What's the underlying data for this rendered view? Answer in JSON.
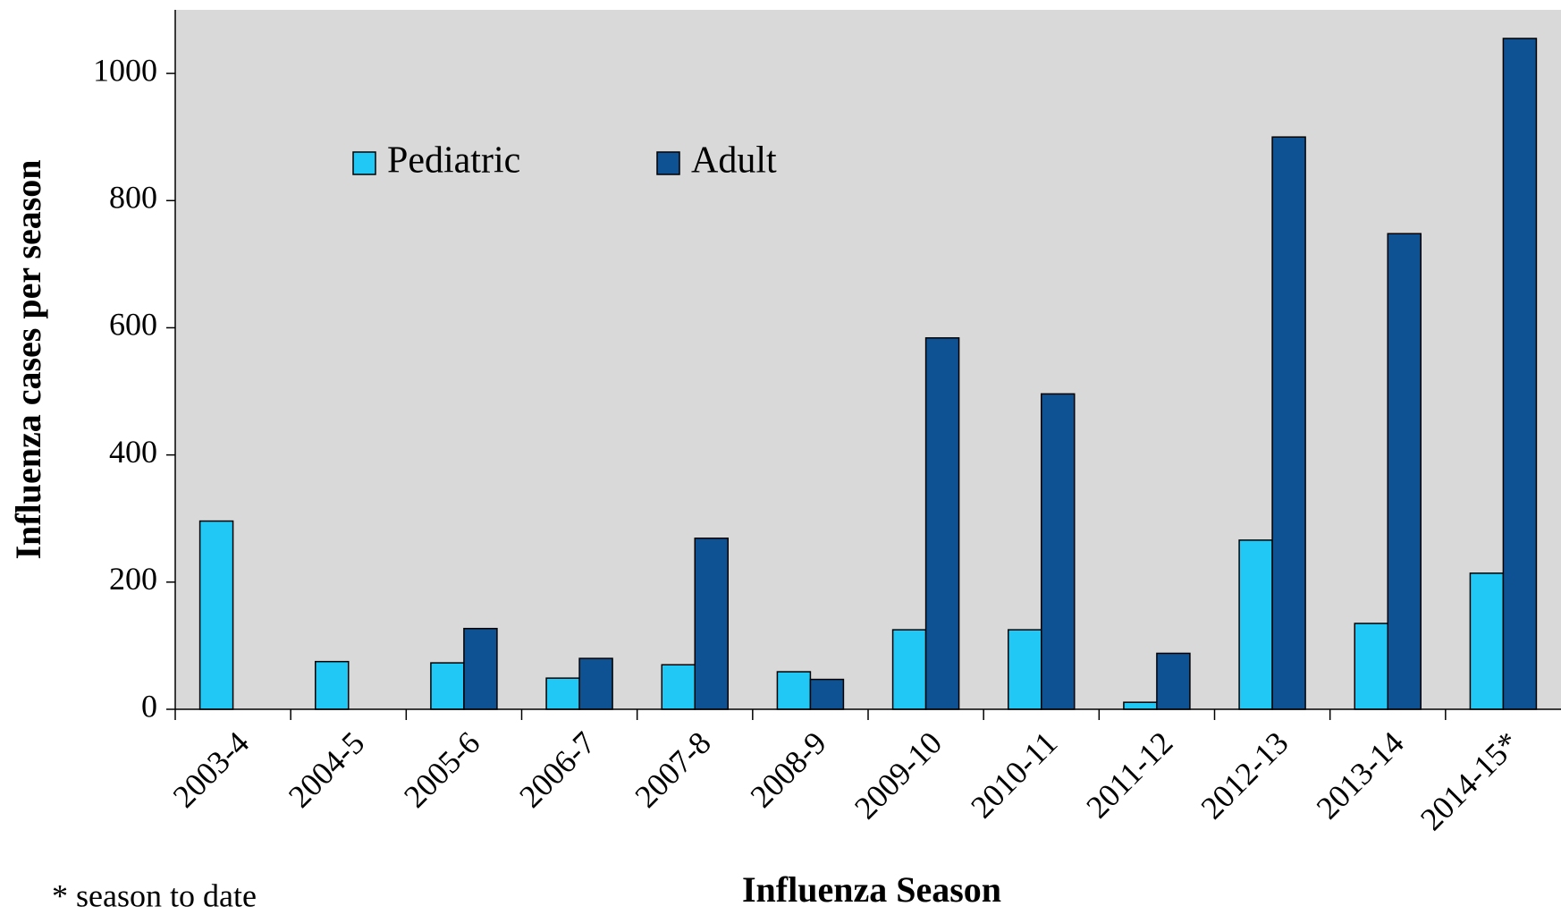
{
  "chart_data": {
    "type": "bar",
    "y_label": "Influenza cases per season",
    "x_label": "Influenza Season",
    "footnote": "* season to date",
    "categories": [
      "2003-4",
      "2004-5",
      "2005-6",
      "2006-7",
      "2007-8",
      "2008-9",
      "2009-10",
      "2010-11",
      "2011-12",
      "2012-13",
      "2013-14",
      "2014-15*"
    ],
    "series": [
      {
        "name": "Pediatric",
        "color": "#22c8f5",
        "values": [
          296,
          75,
          73,
          49,
          70,
          59,
          125,
          125,
          11,
          266,
          135,
          214
        ]
      },
      {
        "name": "Adult",
        "color": "#0f5294",
        "values": [
          null,
          null,
          127,
          80,
          269,
          47,
          584,
          496,
          88,
          900,
          748,
          1055
        ]
      }
    ],
    "ylim": [
      0,
      1100
    ],
    "yticks": [
      0,
      200,
      400,
      600,
      800,
      1000
    ],
    "plot_background": "#d9d9d9",
    "grid": false
  }
}
